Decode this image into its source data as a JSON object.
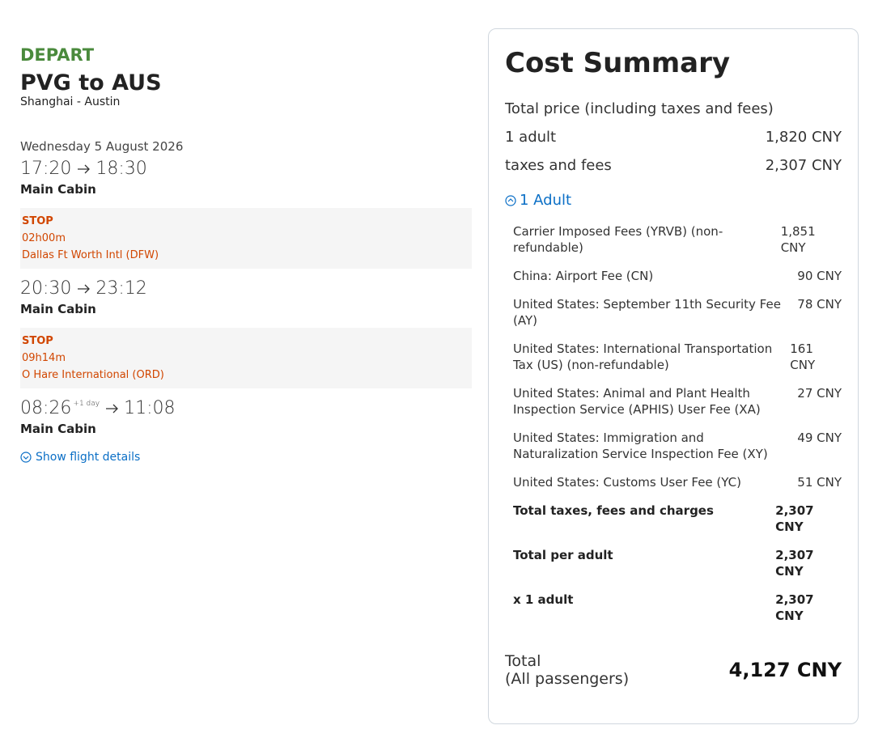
{
  "itinerary": {
    "label": "DEPART",
    "route": "PVG to AUS",
    "cities": "Shanghai - Austin",
    "date": "Wednesday 5 August 2026",
    "legs": [
      {
        "depart": "17:20",
        "arrive": "18:30",
        "cabin": "Main Cabin",
        "stop": {
          "label": "STOP",
          "duration": "02h00m",
          "airport": "Dallas Ft Worth Intl (DFW)"
        }
      },
      {
        "depart": "20:30",
        "arrive": "23:12",
        "cabin": "Main Cabin",
        "stop": {
          "label": "STOP",
          "duration": "09h14m",
          "airport": "O Hare International (ORD)"
        }
      },
      {
        "depart": "08:26",
        "depart_note": "+1 day",
        "arrive": "11:08",
        "cabin": "Main Cabin"
      }
    ],
    "details_link": "Show flight details"
  },
  "cost_summary": {
    "title": "Cost Summary",
    "subtitle": "Total price (including taxes and fees)",
    "rows": [
      {
        "label": "1 adult",
        "amount": "1,820 CNY"
      },
      {
        "label": "taxes and fees",
        "amount": "2,307 CNY"
      }
    ],
    "toggle": "1 Adult",
    "breakdown": [
      {
        "label": "Carrier Imposed Fees (YRVB) (non-refundable)",
        "amount": "1,851 CNY"
      },
      {
        "label": "China: Airport Fee (CN)",
        "amount": "90 CNY"
      },
      {
        "label": "United States: September 11th Security Fee (AY)",
        "amount": "78 CNY"
      },
      {
        "label": "United States: International Transportation Tax (US) (non-refundable)",
        "amount": "161 CNY"
      },
      {
        "label": "United States: Animal and Plant Health Inspection Service (APHIS) User Fee (XA)",
        "amount": "27 CNY"
      },
      {
        "label": "United States: Immigration and Naturalization Service Inspection Fee (XY)",
        "amount": "49 CNY"
      },
      {
        "label": "United States: Customs User Fee (YC)",
        "amount": "51 CNY"
      }
    ],
    "totals": [
      {
        "label": "Total taxes, fees and charges",
        "amount": "2,307 CNY"
      },
      {
        "label": "Total per adult",
        "amount": "2,307 CNY"
      },
      {
        "label": "x 1 adult",
        "amount": "2,307 CNY"
      }
    ],
    "total": {
      "label": "Total",
      "sublabel": "(All passengers)",
      "amount": "4,127 CNY"
    }
  }
}
